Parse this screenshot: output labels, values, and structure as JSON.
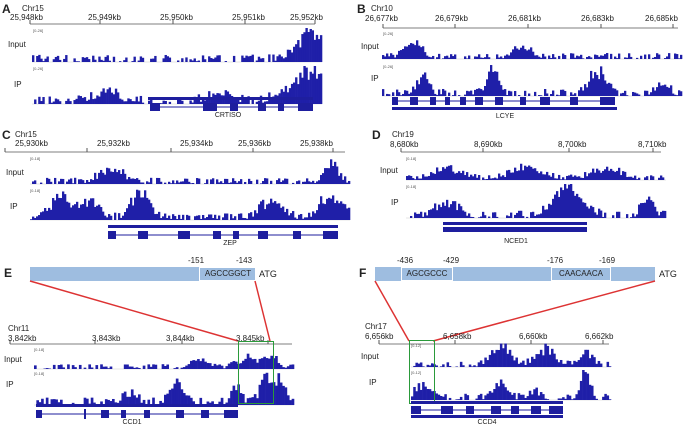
{
  "panels": {
    "A": {
      "letter": "A",
      "chr": "Chr15",
      "ticks": [
        "25,948kb",
        "25,949kb",
        "25,950kb",
        "25,951kb",
        "25,952kb"
      ],
      "input_label": "Input",
      "ip_label": "IP",
      "input_range": "[0-26]",
      "ip_range": "[0-26]",
      "gene": "CRTISO"
    },
    "B": {
      "letter": "B",
      "chr": "Chr10",
      "ticks": [
        "26,677kb",
        "26,679kb",
        "26,681kb",
        "26,683kb",
        "26,685kb"
      ],
      "input_label": "Input",
      "ip_label": "IP",
      "input_range": "[0-26]",
      "ip_range": "[0-26]",
      "gene": "LCYE"
    },
    "C": {
      "letter": "C",
      "chr": "Chr15",
      "ticks": [
        "25,930kb",
        "25,932kb",
        "25,934kb",
        "25,936kb",
        "25,938kb"
      ],
      "input_label": "Input",
      "ip_label": "IP",
      "input_range": "[0-18]",
      "ip_range": "[0-18]",
      "gene": "ZEP"
    },
    "D": {
      "letter": "D",
      "chr": "Chr19",
      "ticks": [
        "8,680kb",
        "8,690kb",
        "8,700kb",
        "8,710kb"
      ],
      "input_label": "Input",
      "ip_label": "IP",
      "input_range": "[0-18]",
      "ip_range": "[0-18]",
      "gene": "NCED1"
    },
    "E": {
      "letter": "E",
      "chr": "Chr11",
      "ticks": [
        "3,842kb",
        "3,843kb",
        "3,844kb",
        "3,845kb"
      ],
      "input_label": "Input",
      "ip_label": "IP",
      "input_range": "[0-18]",
      "ip_range": "[0-18]",
      "gene": "CCD1",
      "promoter": {
        "pos1": "-151",
        "pos2": "-143",
        "motif": "AGCCGGCT",
        "atg": "ATG"
      }
    },
    "F": {
      "letter": "F",
      "chr": "Chr17",
      "ticks": [
        "6,656kb",
        "6,658kb",
        "6,660kb",
        "6,662kb"
      ],
      "input_label": "Input",
      "ip_label": "IP",
      "input_range": "[0-12]",
      "ip_range": "[0-12]",
      "gene": "CCD4",
      "promoter": {
        "pos1": "-436",
        "pos2": "-429",
        "pos3": "-176",
        "pos4": "-169",
        "motif1": "AGCGCCC",
        "motif2": "CAACAACA",
        "atg": "ATG"
      }
    }
  },
  "colors": {
    "track": "#1f1fa8",
    "gene": "#1e1e9e",
    "promoter": "#9ebde0",
    "zoom": "#d33",
    "highlight": "#2a9a3a"
  }
}
